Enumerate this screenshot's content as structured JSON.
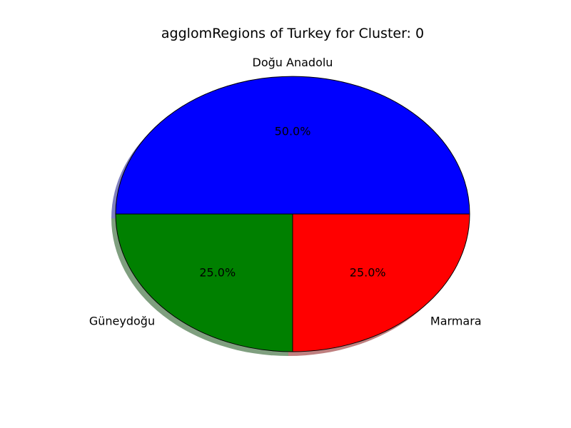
{
  "chart_data": {
    "type": "pie",
    "title": "agglomRegions of Turkey for Cluster: 0",
    "start_angle_deg": 0,
    "direction": "counterclockwise",
    "shadow": true,
    "slices": [
      {
        "label": "Doğu Anadolu",
        "value": 50.0,
        "percent_label": "50.0%",
        "color": "#0000ff"
      },
      {
        "label": "Güneydoğu",
        "value": 25.0,
        "percent_label": "25.0%",
        "color": "#008000"
      },
      {
        "label": "Marmara",
        "value": 25.0,
        "percent_label": "25.0%",
        "color": "#ff0000"
      }
    ]
  }
}
